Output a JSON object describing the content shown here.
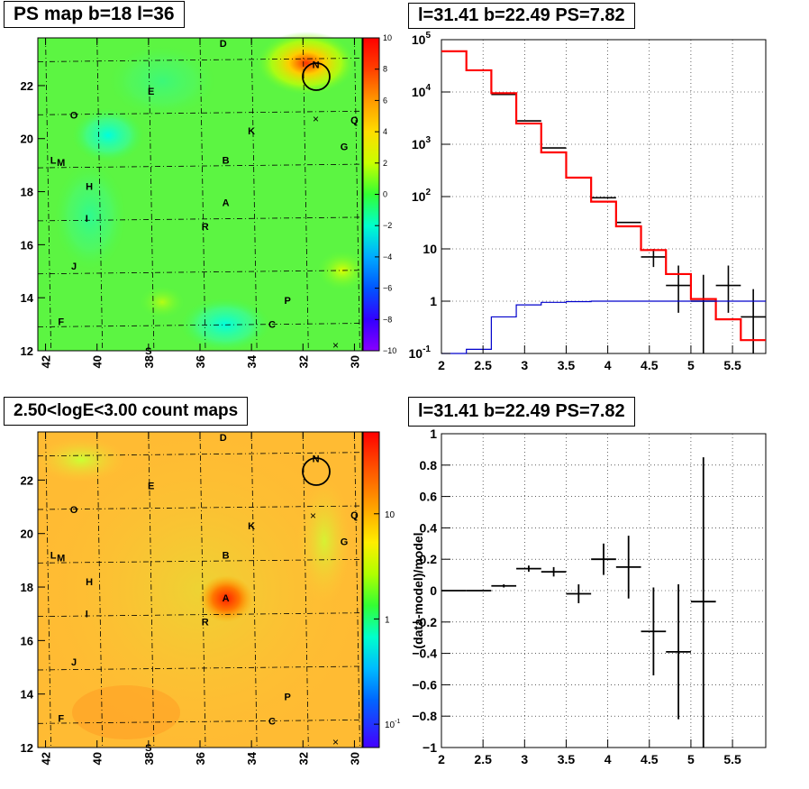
{
  "titles": {
    "ps_map": "PS map b=18 l=36",
    "count_map": "2.50<logE<3.00 count maps",
    "spectrum": "l=31.41 b=22.49 PS=7.82",
    "residual": "l=31.41 b=22.49 PS=7.82"
  },
  "colors": {
    "data": "#000000",
    "model": "#ff0000",
    "background": "#0000cc",
    "grid": "#000000"
  },
  "map_axes": {
    "x_ticks": [
      "42",
      "40",
      "38",
      "36",
      "34",
      "32",
      "30"
    ],
    "y_ticks": [
      "12",
      "14",
      "16",
      "18",
      "20",
      "22"
    ],
    "xlim": [
      42.3,
      29.7
    ],
    "ylim": [
      12,
      23.8
    ]
  },
  "sources": [
    {
      "label": "D",
      "l": 35.1,
      "b": 23.6
    },
    {
      "label": "N",
      "l": 31.5,
      "b": 22.8
    },
    {
      "label": "E",
      "l": 37.9,
      "b": 21.8
    },
    {
      "label": "O",
      "l": 40.9,
      "b": 20.9
    },
    {
      "label": "Q",
      "l": 30.0,
      "b": 20.7
    },
    {
      "label": "K",
      "l": 34.0,
      "b": 20.3
    },
    {
      "label": "G",
      "l": 30.4,
      "b": 19.7
    },
    {
      "label": "L",
      "l": 41.7,
      "b": 19.2
    },
    {
      "label": "M",
      "l": 41.4,
      "b": 19.1
    },
    {
      "label": "B",
      "l": 35.0,
      "b": 19.2
    },
    {
      "label": "H",
      "l": 40.3,
      "b": 18.2
    },
    {
      "label": "A",
      "l": 35.0,
      "b": 17.6
    },
    {
      "label": "I",
      "l": 40.4,
      "b": 17.0
    },
    {
      "label": "R",
      "l": 35.8,
      "b": 16.7
    },
    {
      "label": "J",
      "l": 40.9,
      "b": 15.2
    },
    {
      "label": "P",
      "l": 32.6,
      "b": 13.9
    },
    {
      "label": "F",
      "l": 41.4,
      "b": 13.1
    },
    {
      "label": "C",
      "l": 33.2,
      "b": 13.0
    },
    {
      "label": "S",
      "l": 38.0,
      "b": 12.0
    }
  ],
  "ps_colorbar": {
    "range": [
      -10,
      10
    ],
    "ticks": [
      "10",
      "8",
      "6",
      "4",
      "2",
      "0",
      "−2",
      "−4",
      "−6",
      "−8",
      "−10"
    ]
  },
  "count_colorbar": {
    "scale": "log",
    "ticks": [
      {
        "label": "10",
        "value": 10
      },
      {
        "label": "1",
        "value": 1
      },
      {
        "label": "10",
        "sup": "-1",
        "value": 0.1
      }
    ]
  },
  "chart_data": [
    {
      "type": "line",
      "title": "l=31.41 b=22.49 PS=7.82",
      "xlabel": "",
      "ylabel": "",
      "xlim": [
        2,
        5.9
      ],
      "ylim": [
        0.1,
        100000
      ],
      "y_scale": "log",
      "grid": true,
      "x_ticks": [
        "2",
        "2.5",
        "3",
        "3.5",
        "4",
        "4.5",
        "5",
        "5.5"
      ],
      "y_ticks": [
        {
          "label": "10",
          "sup": "-1",
          "value": 0.1
        },
        {
          "label": "1",
          "value": 1
        },
        {
          "label": "10",
          "value": 10
        },
        {
          "label": "10",
          "sup": "2",
          "value": 100
        },
        {
          "label": "10",
          "sup": "3",
          "value": 1000
        },
        {
          "label": "10",
          "sup": "4",
          "value": 10000
        },
        {
          "label": "10",
          "sup": "5",
          "value": 100000
        }
      ],
      "bin_edges": [
        2.0,
        2.3,
        2.6,
        2.9,
        3.2,
        3.5,
        3.8,
        4.1,
        4.4,
        4.7,
        5.0,
        5.3,
        5.6,
        5.9
      ],
      "series": [
        {
          "name": "data",
          "style": "errorbar",
          "values": [
            null,
            null,
            9000,
            2800,
            850,
            230,
            95,
            32,
            7,
            2,
            1.0,
            2.0,
            0.5
          ],
          "err_low": [
            null,
            null,
            0,
            0,
            0,
            0,
            0,
            0,
            2.5,
            1.4,
            0.9,
            1.4,
            0.4
          ],
          "err_high": [
            null,
            null,
            0,
            0,
            0,
            0,
            0,
            0,
            3,
            2.8,
            2.2,
            2.8,
            1.2
          ]
        },
        {
          "name": "model",
          "style": "step",
          "values": [
            60000,
            26000,
            9500,
            2500,
            700,
            230,
            80,
            27,
            9.5,
            3.3,
            1.1,
            0.45,
            0.18
          ]
        },
        {
          "name": "background",
          "style": "step",
          "values": [
            0.1,
            0.12,
            0.5,
            0.85,
            0.95,
            0.98,
            1.0,
            1.0,
            1.0,
            1.0,
            1.0,
            1.0,
            1.0
          ]
        }
      ]
    },
    {
      "type": "scatter",
      "title": "l=31.41 b=22.49 PS=7.82",
      "xlabel": "",
      "ylabel": "(data-model)/model",
      "xlim": [
        2,
        5.9
      ],
      "ylim": [
        -1,
        1
      ],
      "grid": true,
      "x_ticks": [
        "2",
        "2.5",
        "3",
        "3.5",
        "4",
        "4.5",
        "5",
        "5.5"
      ],
      "y_ticks": [
        "1",
        "0.8",
        "0.6",
        "0.4",
        "0.2",
        "0",
        "−0.2",
        "−0.4",
        "−0.6",
        "−0.8",
        "−1"
      ],
      "points": [
        {
          "x": 2.15,
          "y": 0.0,
          "xerr": 0.15,
          "yerr_low": 0.0,
          "yerr_high": 0.0
        },
        {
          "x": 2.45,
          "y": 0.0,
          "xerr": 0.15,
          "yerr_low": 0.0,
          "yerr_high": 0.0
        },
        {
          "x": 2.75,
          "y": 0.03,
          "xerr": 0.15,
          "yerr_low": 0.01,
          "yerr_high": 0.01
        },
        {
          "x": 3.05,
          "y": 0.14,
          "xerr": 0.15,
          "yerr_low": 0.02,
          "yerr_high": 0.02
        },
        {
          "x": 3.35,
          "y": 0.12,
          "xerr": 0.15,
          "yerr_low": 0.03,
          "yerr_high": 0.03
        },
        {
          "x": 3.65,
          "y": -0.02,
          "xerr": 0.15,
          "yerr_low": 0.06,
          "yerr_high": 0.06
        },
        {
          "x": 3.95,
          "y": 0.2,
          "xerr": 0.15,
          "yerr_low": 0.1,
          "yerr_high": 0.1
        },
        {
          "x": 4.25,
          "y": 0.15,
          "xerr": 0.15,
          "yerr_low": 0.2,
          "yerr_high": 0.2
        },
        {
          "x": 4.55,
          "y": -0.26,
          "xerr": 0.15,
          "yerr_low": 0.28,
          "yerr_high": 0.28
        },
        {
          "x": 4.85,
          "y": -0.39,
          "xerr": 0.15,
          "yerr_low": 0.43,
          "yerr_high": 0.43
        },
        {
          "x": 5.15,
          "y": -0.07,
          "xerr": 0.15,
          "yerr_low": 0.95,
          "yerr_high": 0.92
        }
      ]
    }
  ]
}
